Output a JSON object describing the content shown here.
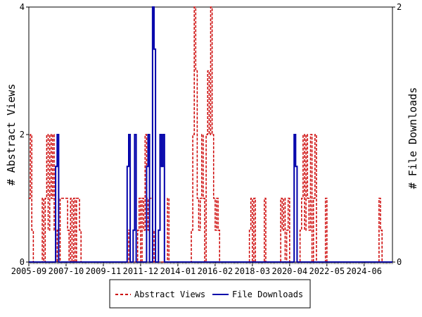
{
  "chart_data": {
    "type": "line",
    "title": "",
    "ylabel": "# Abstract Views",
    "y2label": "# File Downloads",
    "ylim": [
      0,
      4
    ],
    "y2lim": [
      0,
      2
    ],
    "y_ticks": [
      "0",
      "2",
      "4"
    ],
    "y2_ticks": [
      "0",
      "2"
    ],
    "x_tick_labels": [
      "2005-09",
      "2007-10",
      "2009-11",
      "2011-12",
      "2014-01",
      "2016-02",
      "2018-03",
      "2020-04",
      "2022-05",
      "2024-06"
    ],
    "x_range": [
      "2005-09",
      "2026-01"
    ],
    "legend_position": "bottom",
    "grid": false,
    "series": [
      {
        "name": "Abstract Views",
        "axis": "left",
        "color": "#cc0000",
        "style": "dashed",
        "points": [
          [
            "2005-09",
            1
          ],
          [
            "2005-10",
            2
          ],
          [
            "2005-11",
            0.5
          ],
          [
            "2005-12",
            0
          ],
          [
            "2006-05",
            0
          ],
          [
            "2006-06",
            1
          ],
          [
            "2006-07",
            0
          ],
          [
            "2006-08",
            1
          ],
          [
            "2006-09",
            2
          ],
          [
            "2006-10",
            0.5
          ],
          [
            "2006-11",
            2
          ],
          [
            "2006-12",
            1
          ],
          [
            "2007-01",
            2
          ],
          [
            "2007-02",
            0.5
          ],
          [
            "2007-03",
            0
          ],
          [
            "2007-04",
            0.5
          ],
          [
            "2007-05",
            0
          ],
          [
            "2007-06",
            1
          ],
          [
            "2007-07",
            1
          ],
          [
            "2007-08",
            1
          ],
          [
            "2007-09",
            1
          ],
          [
            "2007-10",
            1
          ],
          [
            "2007-11",
            0.5
          ],
          [
            "2007-12",
            0
          ],
          [
            "2008-01",
            1
          ],
          [
            "2008-02",
            0
          ],
          [
            "2008-03",
            1
          ],
          [
            "2008-04",
            0
          ],
          [
            "2008-05",
            1
          ],
          [
            "2008-06",
            1
          ],
          [
            "2008-07",
            0.5
          ],
          [
            "2008-08",
            0
          ],
          [
            "2011-03",
            0
          ],
          [
            "2011-04",
            0.5
          ],
          [
            "2011-05",
            0
          ],
          [
            "2011-09",
            0
          ],
          [
            "2011-10",
            0.5
          ],
          [
            "2011-11",
            1
          ],
          [
            "2011-12",
            0
          ],
          [
            "2012-01",
            1
          ],
          [
            "2012-02",
            0.5
          ],
          [
            "2012-03",
            2
          ],
          [
            "2012-04",
            1
          ],
          [
            "2012-05",
            0.5
          ],
          [
            "2012-06",
            1
          ],
          [
            "2012-07",
            1
          ],
          [
            "2012-08",
            0.5
          ],
          [
            "2012-09",
            0
          ],
          [
            "2013-05",
            0
          ],
          [
            "2013-06",
            1
          ],
          [
            "2013-07",
            0
          ],
          [
            "2014-09",
            0
          ],
          [
            "2014-10",
            0.5
          ],
          [
            "2014-11",
            2
          ],
          [
            "2014-12",
            4
          ],
          [
            "2015-01",
            3
          ],
          [
            "2015-02",
            1
          ],
          [
            "2015-03",
            0.5
          ],
          [
            "2015-04",
            1
          ],
          [
            "2015-05",
            2
          ],
          [
            "2015-06",
            1
          ],
          [
            "2015-07",
            0
          ],
          [
            "2015-08",
            2
          ],
          [
            "2015-09",
            3
          ],
          [
            "2015-10",
            2
          ],
          [
            "2015-11",
            4
          ],
          [
            "2015-12",
            2
          ],
          [
            "2016-01",
            1
          ],
          [
            "2016-02",
            0.5
          ],
          [
            "2016-03",
            1
          ],
          [
            "2016-04",
            0.5
          ],
          [
            "2016-05",
            0
          ],
          [
            "2017-12",
            0
          ],
          [
            "2018-01",
            0.5
          ],
          [
            "2018-02",
            1
          ],
          [
            "2018-03",
            0
          ],
          [
            "2018-04",
            1
          ],
          [
            "2018-05",
            0
          ],
          [
            "2018-10",
            0
          ],
          [
            "2018-11",
            1
          ],
          [
            "2018-12",
            0
          ],
          [
            "2019-09",
            0
          ],
          [
            "2019-10",
            1
          ],
          [
            "2019-11",
            0.5
          ],
          [
            "2019-12",
            1
          ],
          [
            "2020-01",
            0
          ],
          [
            "2020-02",
            0.5
          ],
          [
            "2020-03",
            1
          ],
          [
            "2020-04",
            0
          ],
          [
            "2020-10",
            0
          ],
          [
            "2020-11",
            0.5
          ],
          [
            "2020-12",
            1
          ],
          [
            "2021-01",
            2
          ],
          [
            "2021-02",
            0.5
          ],
          [
            "2021-03",
            2
          ],
          [
            "2021-04",
            1
          ],
          [
            "2021-05",
            0.5
          ],
          [
            "2021-06",
            2
          ],
          [
            "2021-07",
            0
          ],
          [
            "2021-08",
            1
          ],
          [
            "2021-09",
            2
          ],
          [
            "2021-10",
            0
          ],
          [
            "2022-03",
            0
          ],
          [
            "2022-04",
            1
          ],
          [
            "2022-05",
            0
          ],
          [
            "2025-03",
            0
          ],
          [
            "2025-04",
            1
          ],
          [
            "2025-05",
            0.5
          ],
          [
            "2025-06",
            0
          ]
        ]
      },
      {
        "name": "File Downloads",
        "axis": "right",
        "color": "#0000aa",
        "style": "solid",
        "points": [
          [
            "2005-09",
            0
          ],
          [
            "2007-02",
            0
          ],
          [
            "2007-03",
            0.75
          ],
          [
            "2007-04",
            1
          ],
          [
            "2007-05",
            0
          ],
          [
            "2011-02",
            0
          ],
          [
            "2011-03",
            0.75
          ],
          [
            "2011-04",
            1
          ],
          [
            "2011-05",
            0
          ],
          [
            "2011-06",
            0
          ],
          [
            "2011-07",
            0.25
          ],
          [
            "2011-08",
            1
          ],
          [
            "2011-09",
            0
          ],
          [
            "2012-03",
            0
          ],
          [
            "2012-04",
            0.75
          ],
          [
            "2012-05",
            1
          ],
          [
            "2012-06",
            0
          ],
          [
            "2012-07",
            0
          ],
          [
            "2012-08",
            2
          ],
          [
            "2012-09",
            1.67
          ],
          [
            "2012-10",
            0
          ],
          [
            "2012-11",
            0
          ],
          [
            "2012-12",
            0.25
          ],
          [
            "2013-01",
            1
          ],
          [
            "2013-02",
            0.75
          ],
          [
            "2013-03",
            1
          ],
          [
            "2013-04",
            0
          ],
          [
            "2020-06",
            0
          ],
          [
            "2020-07",
            1
          ],
          [
            "2020-08",
            0.75
          ],
          [
            "2020-09",
            0
          ],
          [
            "2026-01",
            0
          ]
        ]
      }
    ]
  }
}
